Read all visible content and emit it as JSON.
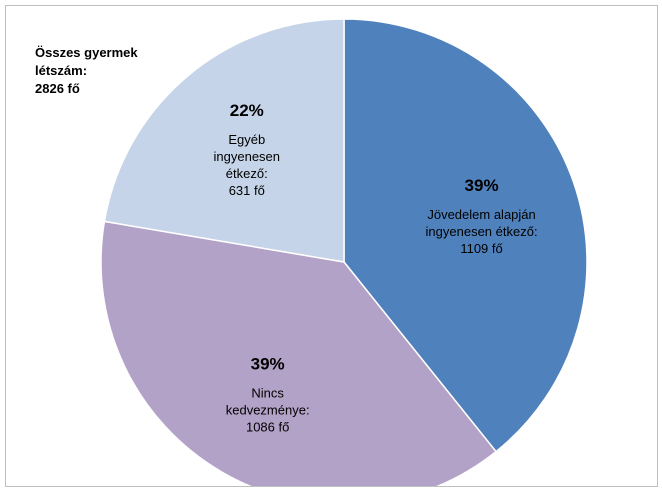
{
  "total_note": {
    "lines": [
      "Összes gyermek",
      "létszám:",
      "2826 fő"
    ]
  },
  "colors": {
    "slice_1": "#4f81bd",
    "slice_2": "#b3a2c7",
    "slice_3": "#c5d4e8",
    "edge": "#ffffff",
    "frame": "#bfbfbf"
  },
  "chart_data": {
    "type": "pie",
    "title": "",
    "start_angle_deg": 0,
    "direction": "clockwise",
    "slices": [
      {
        "value": 1109,
        "percent_label": "39%",
        "label_lines": [
          "Jövedelem alapján",
          "ingyenesen étkező:",
          "1109 fő"
        ],
        "color": "#4f81bd"
      },
      {
        "value": 1086,
        "percent_label": "39%",
        "label_lines": [
          "Nincs",
          "kedvezménye:",
          "1086 fő"
        ],
        "color": "#b3a2c7"
      },
      {
        "value": 631,
        "percent_label": "22%",
        "label_lines": [
          "Egyéb",
          "ingyenesen",
          "étkező:",
          "631 fő"
        ],
        "color": "#c5d4e8"
      }
    ]
  }
}
